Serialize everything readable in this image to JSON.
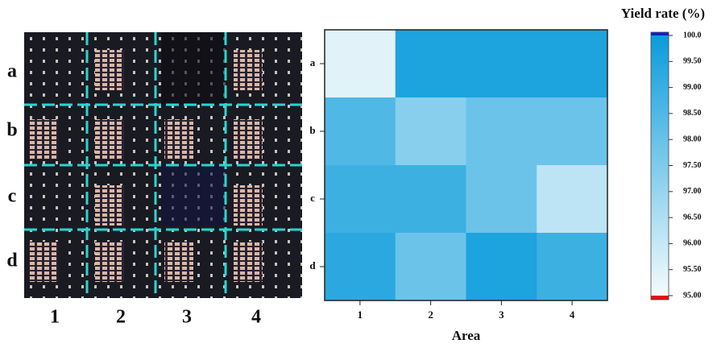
{
  "photo": {
    "row_labels": [
      "a",
      "b",
      "c",
      "d"
    ],
    "col_labels": [
      "1",
      "2",
      "3",
      "4"
    ]
  },
  "chart_data": {
    "type": "heatmap",
    "x_label": "Area",
    "categories": [
      "1",
      "2",
      "3",
      "4"
    ],
    "rows": [
      "a",
      "b",
      "c",
      "d"
    ],
    "values": [
      [
        95.4,
        99.6,
        99.6,
        99.6
      ],
      [
        98.5,
        97.3,
        97.9,
        97.9
      ],
      [
        98.9,
        98.9,
        97.9,
        96.2
      ],
      [
        99.3,
        97.9,
        99.6,
        98.9
      ]
    ],
    "colorbar_title": "Yield rate (%)",
    "colormap": [
      "#f4fbfc",
      "#0a9bdb"
    ],
    "over_color": "#1020c0",
    "under_color": "#e01010",
    "zlim": [
      95,
      100
    ],
    "zticks": [
      {
        "value": 100,
        "label": "100.0"
      },
      {
        "value": 99.5,
        "label": "99.50"
      },
      {
        "value": 99,
        "label": "99.00"
      },
      {
        "value": 98.5,
        "label": "98.50"
      },
      {
        "value": 98,
        "label": "98.00"
      },
      {
        "value": 97.5,
        "label": "97.50"
      },
      {
        "value": 97,
        "label": "97.00"
      },
      {
        "value": 96.5,
        "label": "96.50"
      },
      {
        "value": 96,
        "label": "96.00"
      },
      {
        "value": 95.5,
        "label": "95.50"
      },
      {
        "value": 95,
        "label": "95.00"
      }
    ]
  }
}
